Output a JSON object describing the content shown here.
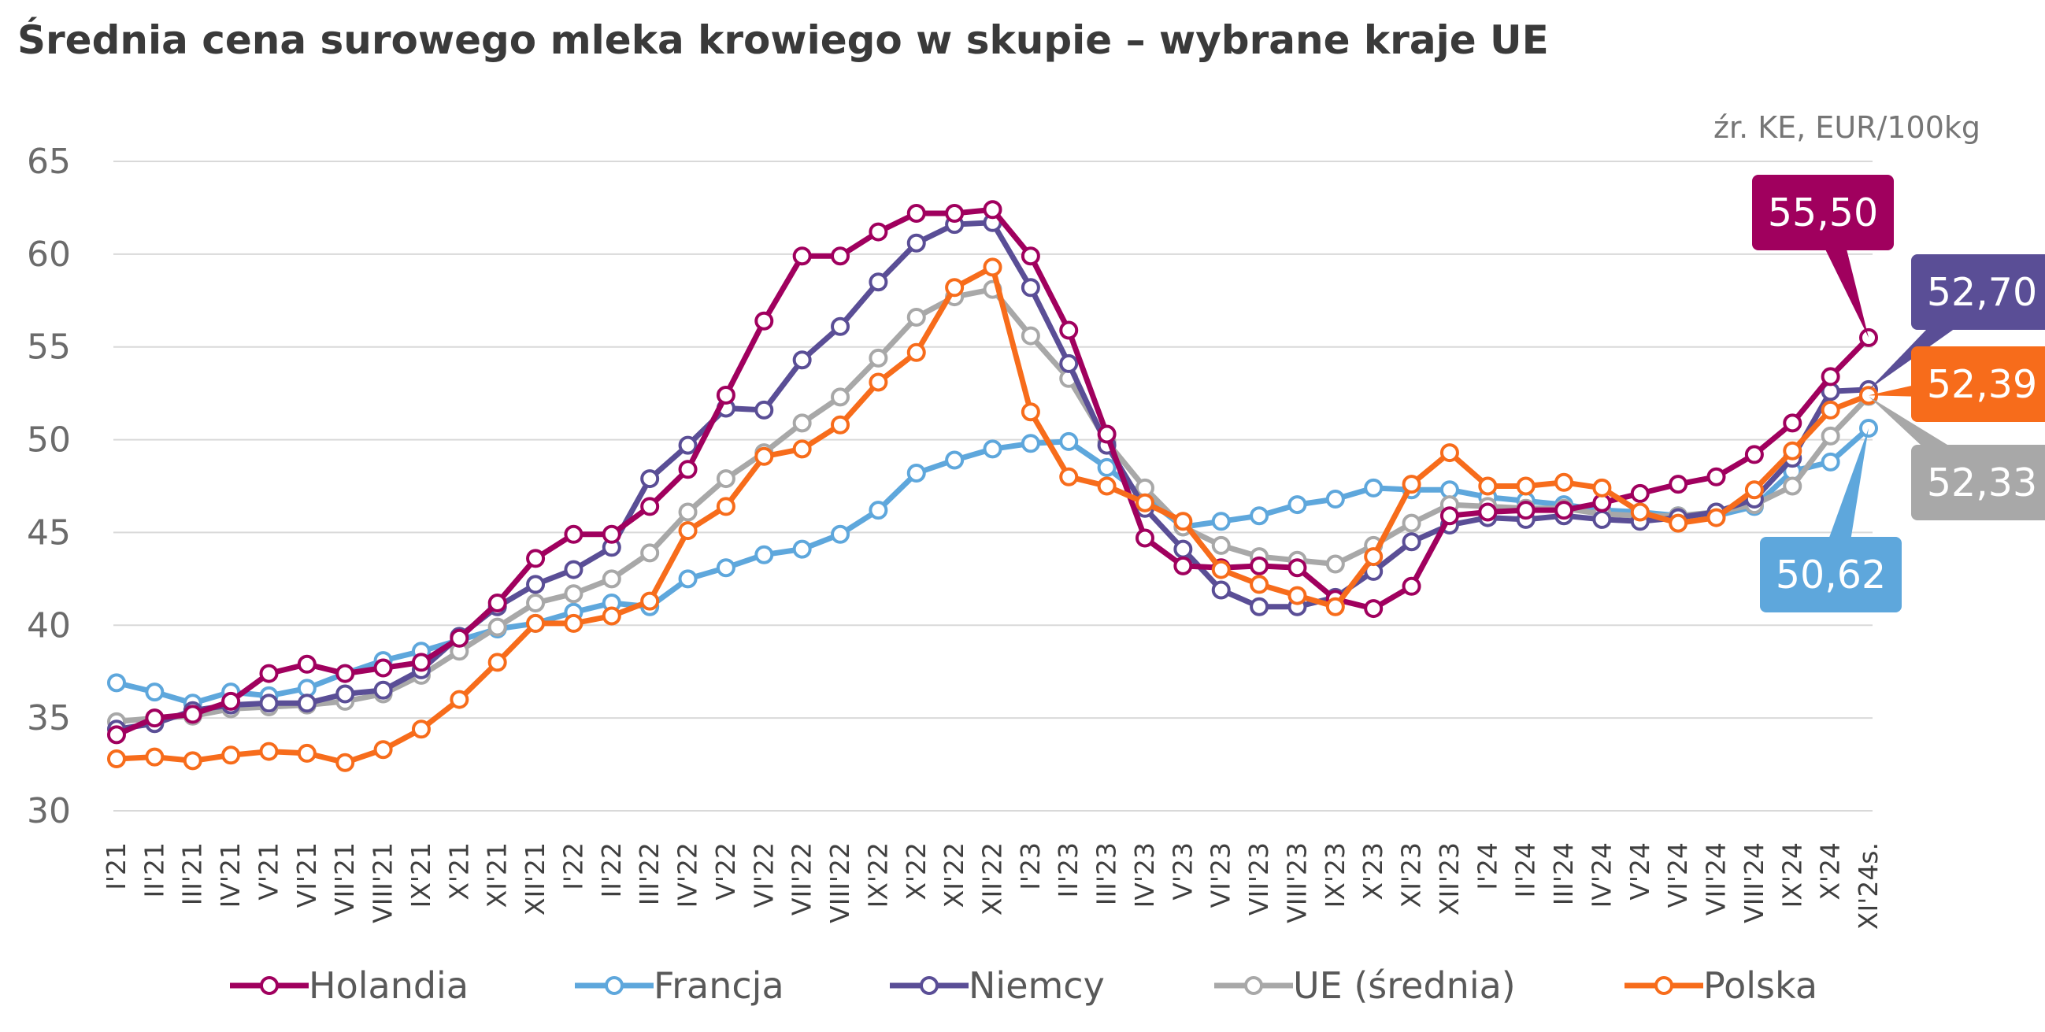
{
  "title": "Średnia cena surowego mleka krowiego w skupie – wybrane kraje UE",
  "source": "źr. KE, EUR/100kg",
  "chart_data": {
    "type": "line",
    "title": "Średnia cena surowego mleka krowiego w skupie – wybrane kraje UE",
    "xlabel": "",
    "ylabel": "",
    "ylim": [
      30,
      65
    ],
    "yticks": [
      "30",
      "35",
      "40",
      "45",
      "50",
      "55",
      "60",
      "65"
    ],
    "grid": true,
    "legend_position": "bottom",
    "categories": [
      "I'21",
      "II'21",
      "III'21",
      "IV'21",
      "V'21",
      "VI'21",
      "VII'21",
      "VIII'21",
      "IX'21",
      "X'21",
      "XI'21",
      "XII'21",
      "I'22",
      "II'22",
      "III'22",
      "IV'22",
      "V'22",
      "VI'22",
      "VII'22",
      "VIII'22",
      "IX'22",
      "X'22",
      "XI'22",
      "XII'22",
      "I'23",
      "II'23",
      "III'23",
      "IV'23",
      "V'23",
      "VI'23",
      "VII'23",
      "VIII'23",
      "IX'23",
      "X'23",
      "XI'23",
      "XII'23",
      "I'24",
      "II'24",
      "III'24",
      "IV'24",
      "V'24",
      "VI'24",
      "VII'24",
      "VIII'24",
      "IX'24",
      "X'24",
      "XI'24s."
    ],
    "series": [
      {
        "name": "Francja",
        "color": "#5ea7dc",
        "values": [
          36.9,
          36.4,
          35.8,
          36.4,
          36.2,
          36.6,
          37.4,
          38.1,
          38.6,
          39.2,
          39.8,
          40.1,
          40.7,
          41.2,
          41.0,
          42.5,
          43.1,
          43.8,
          44.1,
          44.9,
          46.2,
          48.2,
          48.9,
          49.5,
          49.8,
          49.9,
          48.5,
          46.9,
          45.3,
          45.6,
          45.9,
          46.5,
          46.8,
          47.4,
          47.3,
          47.3,
          46.9,
          46.7,
          46.5,
          46.2,
          46.1,
          45.9,
          45.9,
          46.4,
          48.3,
          48.8,
          50.62
        ]
      },
      {
        "name": "UE (średnia)",
        "color": "#a8a8a8",
        "values": [
          34.8,
          35.0,
          35.1,
          35.5,
          35.6,
          35.7,
          35.9,
          36.3,
          37.3,
          38.6,
          39.9,
          41.2,
          41.7,
          42.5,
          43.9,
          46.1,
          47.9,
          49.3,
          50.9,
          52.3,
          54.4,
          56.6,
          57.7,
          58.1,
          55.6,
          53.3,
          49.9,
          47.4,
          45.3,
          44.3,
          43.7,
          43.5,
          43.3,
          44.3,
          45.5,
          46.5,
          46.4,
          46.3,
          46.3,
          46.0,
          45.9,
          45.9,
          46.1,
          46.5,
          47.5,
          50.2,
          52.33
        ]
      },
      {
        "name": "Niemcy",
        "color": "#5a4e96",
        "values": [
          34.4,
          34.7,
          35.4,
          35.7,
          35.8,
          35.8,
          36.3,
          36.5,
          37.6,
          39.4,
          41.0,
          42.2,
          43.0,
          44.2,
          47.9,
          49.7,
          51.7,
          51.6,
          54.3,
          56.1,
          58.5,
          60.6,
          61.6,
          61.7,
          58.2,
          54.1,
          49.7,
          46.3,
          44.1,
          41.9,
          41.0,
          41.0,
          41.5,
          42.9,
          44.5,
          45.4,
          45.8,
          45.7,
          45.9,
          45.7,
          45.6,
          45.8,
          46.1,
          46.8,
          49.0,
          52.6,
          52.7
        ]
      },
      {
        "name": "Holandia",
        "color": "#a0005e",
        "values": [
          34.1,
          35.0,
          35.2,
          35.9,
          37.4,
          37.9,
          37.4,
          37.7,
          38.0,
          39.3,
          41.2,
          43.6,
          44.9,
          44.9,
          46.4,
          48.4,
          52.4,
          56.4,
          59.9,
          59.9,
          61.2,
          62.2,
          62.2,
          62.4,
          59.9,
          55.9,
          50.3,
          44.7,
          43.2,
          43.1,
          43.2,
          43.1,
          41.4,
          40.9,
          42.1,
          45.9,
          46.1,
          46.2,
          46.2,
          46.6,
          47.1,
          47.6,
          48.0,
          49.2,
          50.9,
          53.4,
          55.5
        ]
      },
      {
        "name": "Polska",
        "color": "#f76c1b",
        "values": [
          32.8,
          32.9,
          32.7,
          33.0,
          33.2,
          33.1,
          32.6,
          33.3,
          34.4,
          36.0,
          38.0,
          40.1,
          40.1,
          40.5,
          41.3,
          45.1,
          46.4,
          49.1,
          49.5,
          50.8,
          53.1,
          54.7,
          58.2,
          59.3,
          51.5,
          48.0,
          47.5,
          46.6,
          45.6,
          43.0,
          42.2,
          41.6,
          41.0,
          43.7,
          47.6,
          49.3,
          47.5,
          47.5,
          47.7,
          47.4,
          46.1,
          45.5,
          45.8,
          47.3,
          49.4,
          51.6,
          52.39
        ]
      }
    ],
    "legend": [
      "Holandia",
      "Francja",
      "Niemcy",
      "UE (średnia)",
      "Polska"
    ],
    "callouts": [
      {
        "label": "55,50",
        "series": "Holandia",
        "color": "#a0005e"
      },
      {
        "label": "52,70",
        "series": "Niemcy",
        "color": "#5a4e96"
      },
      {
        "label": "52,39",
        "series": "Polska",
        "color": "#f76c1b"
      },
      {
        "label": "52,33",
        "series": "UE (średnia)",
        "color": "#a8a8a8"
      },
      {
        "label": "50,62",
        "series": "Francja",
        "color": "#5ea7dc"
      }
    ]
  }
}
